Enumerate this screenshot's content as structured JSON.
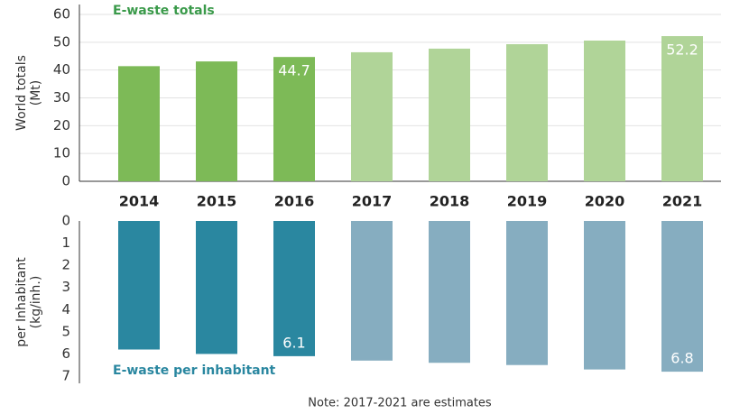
{
  "chart_data": [
    {
      "type": "bar",
      "title": "E-waste totals",
      "ylabel": [
        "World totals",
        "(Mt)"
      ],
      "categories": [
        "2014",
        "2015",
        "2016",
        "2017",
        "2018",
        "2019",
        "2020",
        "2021"
      ],
      "values": [
        41.4,
        43.1,
        44.7,
        46.4,
        47.7,
        49.3,
        50.6,
        52.2
      ],
      "value_labels": [
        null,
        null,
        "44.7",
        null,
        null,
        null,
        null,
        "52.2"
      ],
      "colors": [
        "#7dba57",
        "#7dba57",
        "#7dba57",
        "#b0d498",
        "#b0d498",
        "#b0d498",
        "#b0d498",
        "#b0d498"
      ],
      "title_color": "#3a9a4a",
      "ylim": [
        0,
        60
      ],
      "yticks": [
        0,
        10,
        20,
        30,
        40,
        50,
        60
      ],
      "grid": true,
      "invert_y": false
    },
    {
      "type": "bar",
      "title": "E-waste per inhabitant",
      "ylabel": [
        "per Inhabitant",
        "(kg/inh.)"
      ],
      "values": [
        5.8,
        6.0,
        6.1,
        6.3,
        6.4,
        6.5,
        6.7,
        6.8
      ],
      "value_labels": [
        null,
        null,
        "6.1",
        null,
        null,
        null,
        null,
        "6.8"
      ],
      "colors": [
        "#2a87a0",
        "#2a87a0",
        "#2a87a0",
        "#86adc0",
        "#86adc0",
        "#86adc0",
        "#86adc0",
        "#86adc0"
      ],
      "title_color": "#2a87a0",
      "ylim": [
        0,
        7
      ],
      "yticks": [
        0,
        1,
        2,
        3,
        4,
        5,
        6,
        7
      ],
      "grid": false,
      "invert_y": true
    }
  ],
  "note": "Note: 2017-2021 are estimates"
}
